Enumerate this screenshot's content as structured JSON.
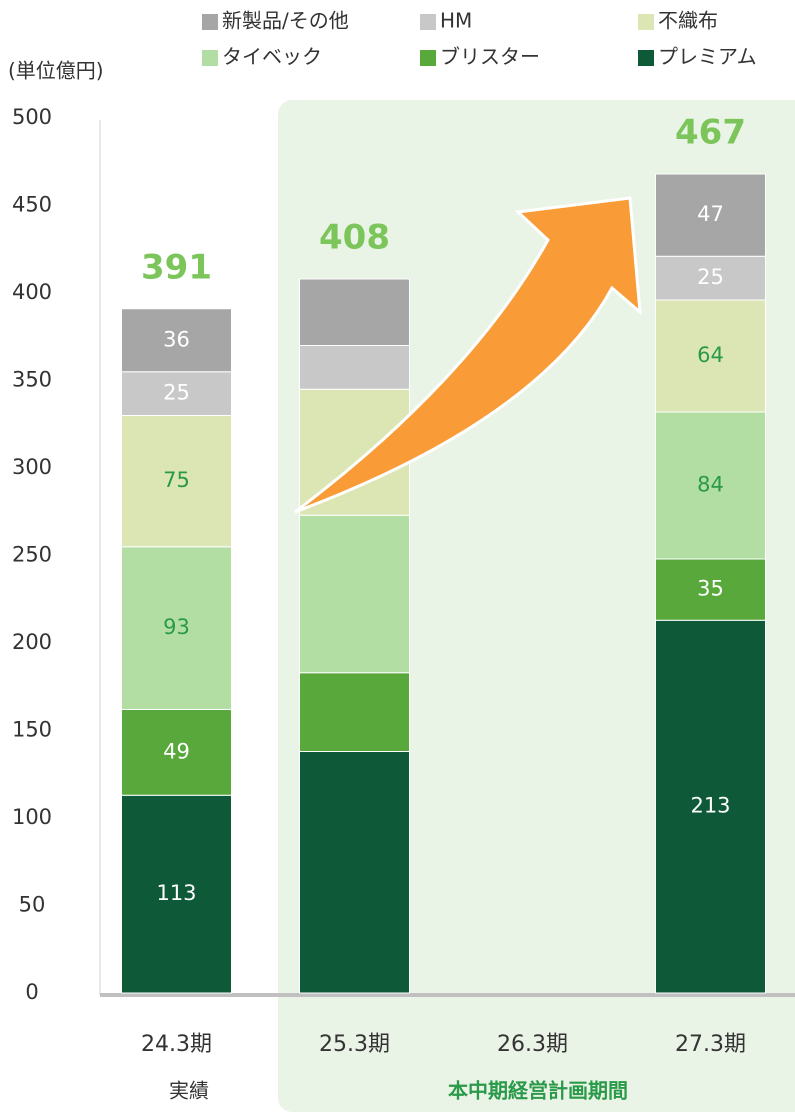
{
  "chart_data": {
    "type": "stacked_bar",
    "unit_label": "(単位億円)",
    "categories": [
      "24.3期",
      "25.3期",
      "26.3期",
      "27.3期"
    ],
    "series": [
      {
        "name": "プレミアム",
        "color": "#0e5a38",
        "label_color": "#ffffff",
        "values": [
          113,
          138,
          null,
          213
        ],
        "value_labels": [
          113,
          null,
          null,
          213
        ]
      },
      {
        "name": "ブリスター",
        "color": "#58a83c",
        "label_color": "#ffffff",
        "values": [
          49,
          45,
          null,
          35
        ],
        "value_labels": [
          49,
          null,
          null,
          35
        ]
      },
      {
        "name": "タイベック",
        "color": "#b3dea3",
        "label_color": "#2a9a4a",
        "values": [
          93,
          90,
          null,
          84
        ],
        "value_labels": [
          93,
          null,
          null,
          84
        ]
      },
      {
        "name": "不織布",
        "color": "#dce6b5",
        "label_color": "#2a9a4a",
        "values": [
          75,
          72,
          null,
          64
        ],
        "value_labels": [
          75,
          null,
          null,
          64
        ]
      },
      {
        "name": "HM",
        "color": "#c8c8c8",
        "label_color": "#ffffff",
        "values": [
          25,
          25,
          null,
          25
        ],
        "value_labels": [
          25,
          null,
          null,
          25
        ]
      },
      {
        "name": "新製品/その他",
        "color": "#a6a6a6",
        "label_color": "#ffffff",
        "values": [
          36,
          38,
          null,
          47
        ],
        "value_labels": [
          36,
          null,
          null,
          47
        ]
      }
    ],
    "totals": [
      391,
      408,
      null,
      467
    ],
    "total_color": "#7cc55a",
    "ylim": [
      0,
      500
    ],
    "yticks": [
      0,
      50,
      100,
      150,
      200,
      250,
      300,
      350,
      400,
      450,
      500
    ],
    "period_labels": [
      "実績",
      "本中期経営計画期間"
    ]
  }
}
